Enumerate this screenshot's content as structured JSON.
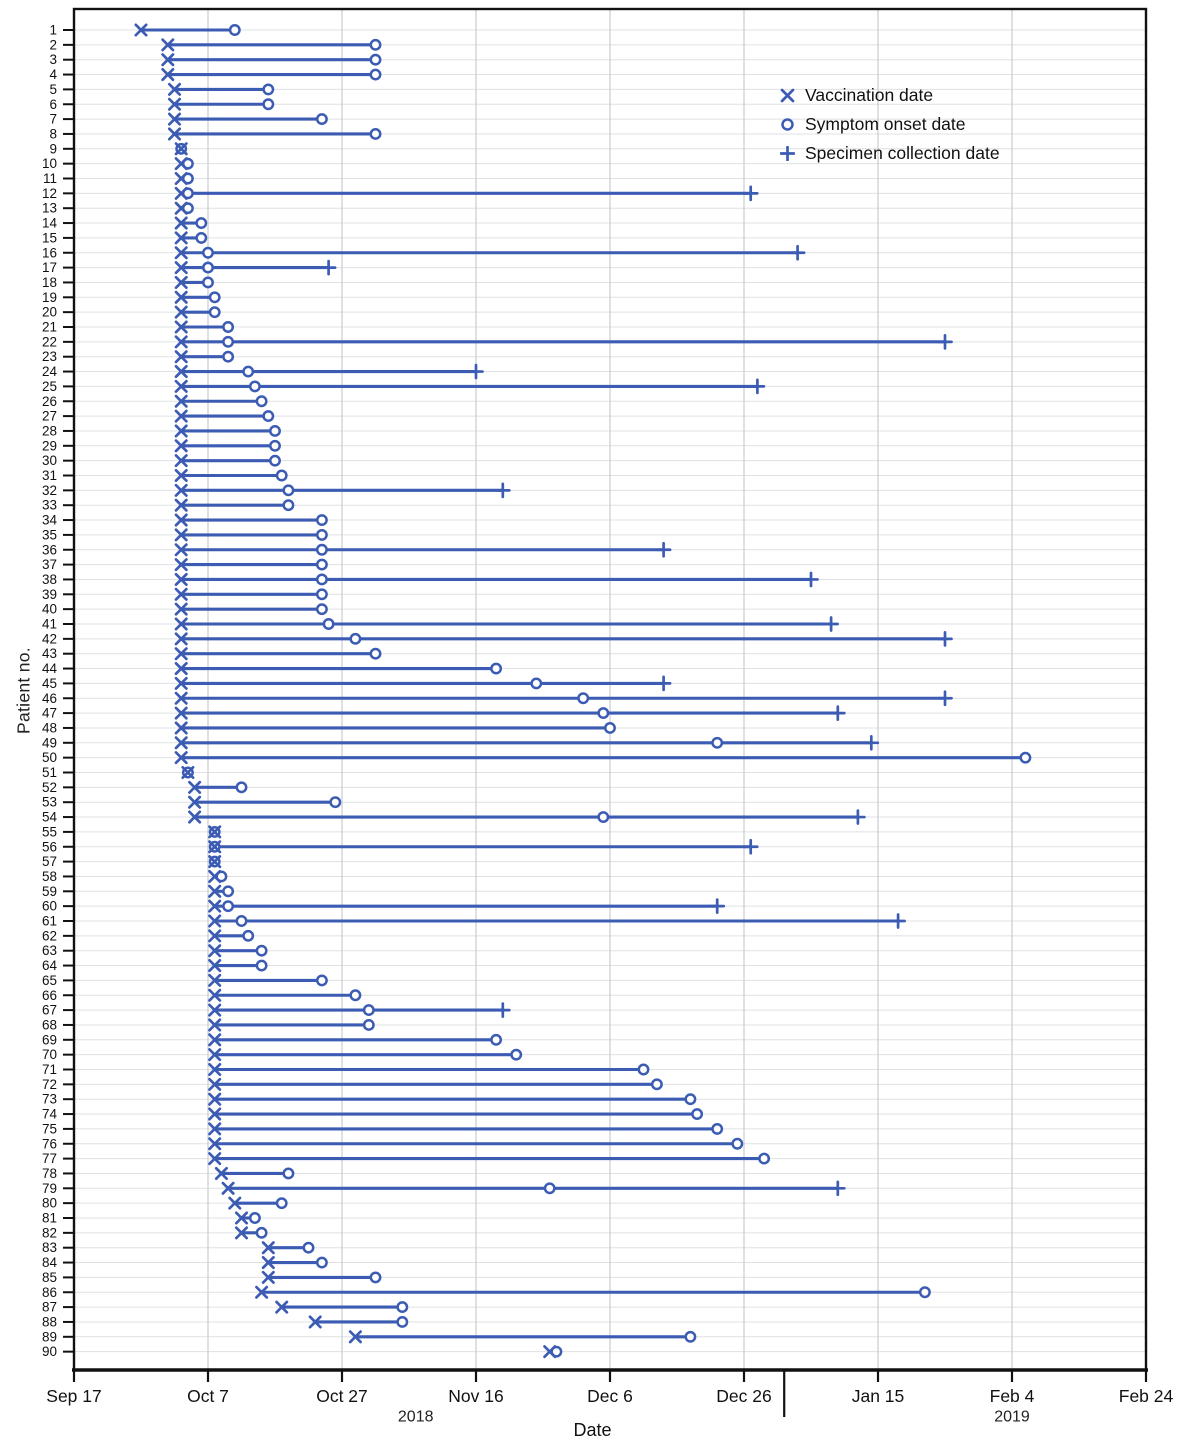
{
  "chart_data": {
    "type": "scatter",
    "title": "",
    "xlabel": "Date",
    "ylabel": "Patient no.",
    "grid": true,
    "legend_position": "top-right",
    "accent_color": "#3c5cb4",
    "legend": [
      {
        "marker": "x",
        "label": "Vaccination date"
      },
      {
        "marker": "o",
        "label": "Symptom onset date"
      },
      {
        "marker": "plus",
        "label": "Specimen collection date"
      }
    ],
    "x_axis": {
      "start": "2018-09-17",
      "end": "2019-02-24",
      "ticks": [
        {
          "label": "Sep 17",
          "date": "2018-09-17"
        },
        {
          "label": "Oct 7",
          "date": "2018-10-07"
        },
        {
          "label": "Oct 27",
          "date": "2018-10-27"
        },
        {
          "label": "Nov 16",
          "date": "2018-11-16"
        },
        {
          "label": "Dec 6",
          "date": "2018-12-06"
        },
        {
          "label": "Dec 26",
          "date": "2018-12-26"
        },
        {
          "label": "Jan 15",
          "date": "2019-01-15"
        },
        {
          "label": "Feb 4",
          "date": "2019-02-04"
        },
        {
          "label": "Feb 24",
          "date": "2019-02-24"
        }
      ],
      "year_labels": [
        {
          "label": "2018",
          "date": "2018-11-07"
        },
        {
          "label": "2019",
          "date": "2019-02-04"
        }
      ],
      "year_divider_date": "2019-01-01"
    },
    "y_axis": {
      "label_min": 1,
      "label_max": 90
    },
    "patients": [
      {
        "id": 1,
        "vaccination": "2018-09-27",
        "onset": "2018-10-11",
        "specimen": null
      },
      {
        "id": 2,
        "vaccination": "2018-10-01",
        "onset": "2018-11-01",
        "specimen": null
      },
      {
        "id": 3,
        "vaccination": "2018-10-01",
        "onset": "2018-11-01",
        "specimen": null
      },
      {
        "id": 4,
        "vaccination": "2018-10-01",
        "onset": "2018-11-01",
        "specimen": null
      },
      {
        "id": 5,
        "vaccination": "2018-10-02",
        "onset": "2018-10-16",
        "specimen": null
      },
      {
        "id": 6,
        "vaccination": "2018-10-02",
        "onset": "2018-10-16",
        "specimen": null
      },
      {
        "id": 7,
        "vaccination": "2018-10-02",
        "onset": "2018-10-24",
        "specimen": null
      },
      {
        "id": 8,
        "vaccination": "2018-10-02",
        "onset": "2018-11-01",
        "specimen": null
      },
      {
        "id": 9,
        "vaccination": "2018-10-03",
        "onset": "2018-10-03",
        "specimen": null
      },
      {
        "id": 10,
        "vaccination": "2018-10-03",
        "onset": "2018-10-04",
        "specimen": null
      },
      {
        "id": 11,
        "vaccination": "2018-10-03",
        "onset": "2018-10-04",
        "specimen": null
      },
      {
        "id": 12,
        "vaccination": "2018-10-03",
        "onset": "2018-10-04",
        "specimen": "2018-12-27"
      },
      {
        "id": 13,
        "vaccination": "2018-10-03",
        "onset": "2018-10-04",
        "specimen": null
      },
      {
        "id": 14,
        "vaccination": "2018-10-03",
        "onset": "2018-10-06",
        "specimen": null
      },
      {
        "id": 15,
        "vaccination": "2018-10-03",
        "onset": "2018-10-06",
        "specimen": null
      },
      {
        "id": 16,
        "vaccination": "2018-10-03",
        "onset": "2018-10-07",
        "specimen": "2019-01-03"
      },
      {
        "id": 17,
        "vaccination": "2018-10-03",
        "onset": "2018-10-07",
        "specimen": "2018-10-25"
      },
      {
        "id": 18,
        "vaccination": "2018-10-03",
        "onset": "2018-10-07",
        "specimen": null
      },
      {
        "id": 19,
        "vaccination": "2018-10-03",
        "onset": "2018-10-08",
        "specimen": null
      },
      {
        "id": 20,
        "vaccination": "2018-10-03",
        "onset": "2018-10-08",
        "specimen": null
      },
      {
        "id": 21,
        "vaccination": "2018-10-03",
        "onset": "2018-10-10",
        "specimen": null
      },
      {
        "id": 22,
        "vaccination": "2018-10-03",
        "onset": "2018-10-10",
        "specimen": "2019-01-25"
      },
      {
        "id": 23,
        "vaccination": "2018-10-03",
        "onset": "2018-10-10",
        "specimen": null
      },
      {
        "id": 24,
        "vaccination": "2018-10-03",
        "onset": "2018-10-13",
        "specimen": "2018-11-16"
      },
      {
        "id": 25,
        "vaccination": "2018-10-03",
        "onset": "2018-10-14",
        "specimen": "2018-12-28"
      },
      {
        "id": 26,
        "vaccination": "2018-10-03",
        "onset": "2018-10-15",
        "specimen": null
      },
      {
        "id": 27,
        "vaccination": "2018-10-03",
        "onset": "2018-10-16",
        "specimen": null
      },
      {
        "id": 28,
        "vaccination": "2018-10-03",
        "onset": "2018-10-17",
        "specimen": null
      },
      {
        "id": 29,
        "vaccination": "2018-10-03",
        "onset": "2018-10-17",
        "specimen": null
      },
      {
        "id": 30,
        "vaccination": "2018-10-03",
        "onset": "2018-10-17",
        "specimen": null
      },
      {
        "id": 31,
        "vaccination": "2018-10-03",
        "onset": "2018-10-18",
        "specimen": null
      },
      {
        "id": 32,
        "vaccination": "2018-10-03",
        "onset": "2018-10-19",
        "specimen": "2018-11-20"
      },
      {
        "id": 33,
        "vaccination": "2018-10-03",
        "onset": "2018-10-19",
        "specimen": null
      },
      {
        "id": 34,
        "vaccination": "2018-10-03",
        "onset": "2018-10-24",
        "specimen": null
      },
      {
        "id": 35,
        "vaccination": "2018-10-03",
        "onset": "2018-10-24",
        "specimen": null
      },
      {
        "id": 36,
        "vaccination": "2018-10-03",
        "onset": "2018-10-24",
        "specimen": "2018-12-14"
      },
      {
        "id": 37,
        "vaccination": "2018-10-03",
        "onset": "2018-10-24",
        "specimen": null
      },
      {
        "id": 38,
        "vaccination": "2018-10-03",
        "onset": "2018-10-24",
        "specimen": "2019-01-05"
      },
      {
        "id": 39,
        "vaccination": "2018-10-03",
        "onset": "2018-10-24",
        "specimen": null
      },
      {
        "id": 40,
        "vaccination": "2018-10-03",
        "onset": "2018-10-24",
        "specimen": null
      },
      {
        "id": 41,
        "vaccination": "2018-10-03",
        "onset": "2018-10-25",
        "specimen": "2019-01-08"
      },
      {
        "id": 42,
        "vaccination": "2018-10-03",
        "onset": "2018-10-29",
        "specimen": "2019-01-25"
      },
      {
        "id": 43,
        "vaccination": "2018-10-03",
        "onset": "2018-11-01",
        "specimen": null
      },
      {
        "id": 44,
        "vaccination": "2018-10-03",
        "onset": "2018-11-19",
        "specimen": null
      },
      {
        "id": 45,
        "vaccination": "2018-10-03",
        "onset": "2018-11-25",
        "specimen": "2018-12-14"
      },
      {
        "id": 46,
        "vaccination": "2018-10-03",
        "onset": "2018-12-02",
        "specimen": "2019-01-25"
      },
      {
        "id": 47,
        "vaccination": "2018-10-03",
        "onset": "2018-12-05",
        "specimen": "2019-01-09"
      },
      {
        "id": 48,
        "vaccination": "2018-10-03",
        "onset": "2018-12-06",
        "specimen": null
      },
      {
        "id": 49,
        "vaccination": "2018-10-03",
        "onset": "2018-12-22",
        "specimen": "2019-01-14"
      },
      {
        "id": 50,
        "vaccination": "2018-10-03",
        "onset": "2019-02-06",
        "specimen": null
      },
      {
        "id": 51,
        "vaccination": "2018-10-04",
        "onset": "2018-10-04",
        "specimen": null
      },
      {
        "id": 52,
        "vaccination": "2018-10-05",
        "onset": "2018-10-12",
        "specimen": null
      },
      {
        "id": 53,
        "vaccination": "2018-10-05",
        "onset": "2018-10-26",
        "specimen": null
      },
      {
        "id": 54,
        "vaccination": "2018-10-05",
        "onset": "2018-12-05",
        "specimen": "2019-01-12"
      },
      {
        "id": 55,
        "vaccination": "2018-10-08",
        "onset": "2018-10-08",
        "specimen": null
      },
      {
        "id": 56,
        "vaccination": "2018-10-08",
        "onset": "2018-10-08",
        "specimen": "2018-12-27"
      },
      {
        "id": 57,
        "vaccination": "2018-10-08",
        "onset": "2018-10-08",
        "specimen": null
      },
      {
        "id": 58,
        "vaccination": "2018-10-08",
        "onset": "2018-10-09",
        "specimen": null
      },
      {
        "id": 59,
        "vaccination": "2018-10-08",
        "onset": "2018-10-10",
        "specimen": null
      },
      {
        "id": 60,
        "vaccination": "2018-10-08",
        "onset": "2018-10-10",
        "specimen": "2018-12-22"
      },
      {
        "id": 61,
        "vaccination": "2018-10-08",
        "onset": "2018-10-12",
        "specimen": "2019-01-18"
      },
      {
        "id": 62,
        "vaccination": "2018-10-08",
        "onset": "2018-10-13",
        "specimen": null
      },
      {
        "id": 63,
        "vaccination": "2018-10-08",
        "onset": "2018-10-15",
        "specimen": null
      },
      {
        "id": 64,
        "vaccination": "2018-10-08",
        "onset": "2018-10-15",
        "specimen": null
      },
      {
        "id": 65,
        "vaccination": "2018-10-08",
        "onset": "2018-10-24",
        "specimen": null
      },
      {
        "id": 66,
        "vaccination": "2018-10-08",
        "onset": "2018-10-29",
        "specimen": null
      },
      {
        "id": 67,
        "vaccination": "2018-10-08",
        "onset": "2018-10-31",
        "specimen": "2018-11-20"
      },
      {
        "id": 68,
        "vaccination": "2018-10-08",
        "onset": "2018-10-31",
        "specimen": null
      },
      {
        "id": 69,
        "vaccination": "2018-10-08",
        "onset": "2018-11-19",
        "specimen": null
      },
      {
        "id": 70,
        "vaccination": "2018-10-08",
        "onset": "2018-11-22",
        "specimen": null
      },
      {
        "id": 71,
        "vaccination": "2018-10-08",
        "onset": "2018-12-11",
        "specimen": null
      },
      {
        "id": 72,
        "vaccination": "2018-10-08",
        "onset": "2018-12-13",
        "specimen": null
      },
      {
        "id": 73,
        "vaccination": "2018-10-08",
        "onset": "2018-12-18",
        "specimen": null
      },
      {
        "id": 74,
        "vaccination": "2018-10-08",
        "onset": "2018-12-19",
        "specimen": null
      },
      {
        "id": 75,
        "vaccination": "2018-10-08",
        "onset": "2018-12-22",
        "specimen": null
      },
      {
        "id": 76,
        "vaccination": "2018-10-08",
        "onset": "2018-12-25",
        "specimen": null
      },
      {
        "id": 77,
        "vaccination": "2018-10-08",
        "onset": "2018-12-29",
        "specimen": null
      },
      {
        "id": 78,
        "vaccination": "2018-10-09",
        "onset": "2018-10-19",
        "specimen": null
      },
      {
        "id": 79,
        "vaccination": "2018-10-10",
        "onset": "2018-11-27",
        "specimen": "2019-01-09"
      },
      {
        "id": 80,
        "vaccination": "2018-10-11",
        "onset": "2018-10-18",
        "specimen": null
      },
      {
        "id": 81,
        "vaccination": "2018-10-12",
        "onset": "2018-10-14",
        "specimen": null
      },
      {
        "id": 82,
        "vaccination": "2018-10-12",
        "onset": "2018-10-15",
        "specimen": null
      },
      {
        "id": 83,
        "vaccination": "2018-10-16",
        "onset": "2018-10-22",
        "specimen": null
      },
      {
        "id": 84,
        "vaccination": "2018-10-16",
        "onset": "2018-10-24",
        "specimen": null
      },
      {
        "id": 85,
        "vaccination": "2018-10-16",
        "onset": "2018-11-01",
        "specimen": null
      },
      {
        "id": 86,
        "vaccination": "2018-10-15",
        "onset": "2019-01-22",
        "specimen": null
      },
      {
        "id": 87,
        "vaccination": "2018-10-18",
        "onset": "2018-11-05",
        "specimen": null
      },
      {
        "id": 88,
        "vaccination": "2018-10-23",
        "onset": "2018-11-05",
        "specimen": null
      },
      {
        "id": 89,
        "vaccination": "2018-10-29",
        "onset": "2018-12-18",
        "specimen": null
      },
      {
        "id": 90,
        "vaccination": "2018-11-27",
        "onset": "2018-11-28",
        "specimen": null
      }
    ]
  }
}
